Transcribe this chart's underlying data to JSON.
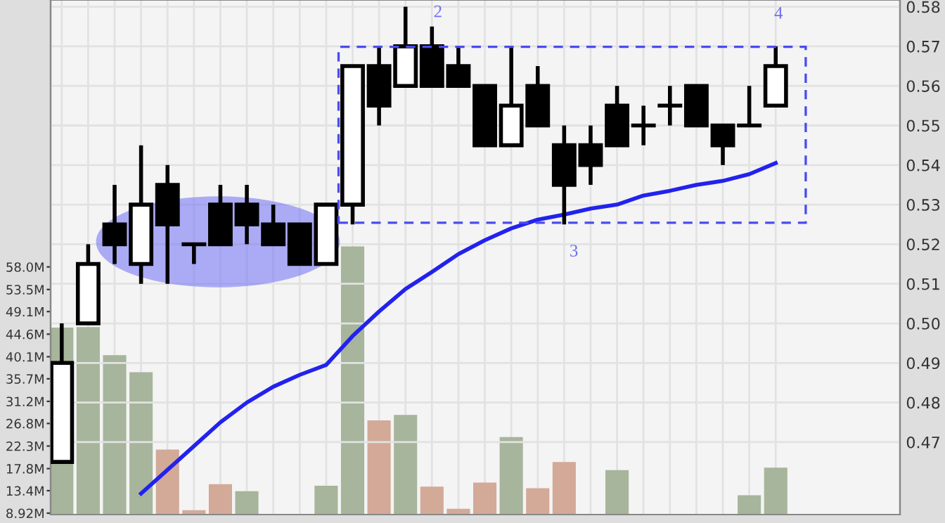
{
  "chart_data": {
    "type": "candlestick",
    "categories": [
      null,
      null,
      null,
      null,
      null,
      null,
      null,
      null,
      null,
      null,
      null,
      null,
      null,
      null,
      null,
      null,
      null,
      null,
      null,
      null,
      null,
      null,
      null,
      null,
      null,
      null,
      null,
      null
    ],
    "ohlc": [
      [
        0.465,
        0.5,
        0.465,
        0.49
      ],
      [
        0.5,
        0.52,
        0.5,
        0.515
      ],
      [
        0.525,
        0.535,
        0.515,
        0.52
      ],
      [
        0.515,
        0.545,
        0.51,
        0.53
      ],
      [
        0.535,
        0.54,
        0.51,
        0.525
      ],
      [
        0.52,
        0.52,
        0.515,
        0.52
      ],
      [
        0.53,
        0.535,
        0.52,
        0.52
      ],
      [
        0.53,
        0.535,
        0.52,
        0.525
      ],
      [
        0.525,
        0.53,
        0.52,
        0.52
      ],
      [
        0.525,
        0.525,
        0.515,
        0.515
      ],
      [
        0.515,
        0.53,
        0.515,
        0.53
      ],
      [
        0.53,
        0.565,
        0.525,
        0.565
      ],
      [
        0.565,
        0.57,
        0.55,
        0.555
      ],
      [
        0.56,
        0.58,
        0.56,
        0.57
      ],
      [
        0.57,
        0.575,
        0.56,
        0.56
      ],
      [
        0.565,
        0.57,
        0.56,
        0.56
      ],
      [
        0.56,
        0.56,
        0.545,
        0.545
      ],
      [
        0.545,
        0.57,
        0.545,
        0.555
      ],
      [
        0.56,
        0.565,
        0.55,
        0.55
      ],
      [
        0.545,
        0.55,
        0.525,
        0.535
      ],
      [
        0.545,
        0.55,
        0.535,
        0.54
      ],
      [
        0.555,
        0.56,
        0.545,
        0.545
      ],
      [
        0.55,
        0.555,
        0.545,
        0.55
      ],
      [
        0.555,
        0.56,
        0.55,
        0.555
      ],
      [
        0.56,
        0.56,
        0.55,
        0.55
      ],
      [
        0.55,
        0.55,
        0.54,
        0.545
      ],
      [
        0.55,
        0.56,
        0.55,
        0.55
      ],
      [
        0.555,
        0.57,
        0.555,
        0.565
      ]
    ],
    "series": [
      {
        "type": "bar",
        "axis": "y2",
        "values": [
          45.9,
          46.0,
          40.4,
          37.0,
          21.6,
          9.5,
          14.7,
          13.3,
          null,
          null,
          14.4,
          62.1,
          27.4,
          28.5,
          14.2,
          9.8,
          15.0,
          24.1,
          13.9,
          19.1,
          null,
          17.5,
          null,
          null,
          null,
          null,
          12.5,
          18.0
        ],
        "colors": [
          "#a6b59b",
          "#a6b59b",
          "#a6b59b",
          "#a6b59b",
          "#d3a998",
          "#d3a998",
          "#d3a998",
          "#a6b59b",
          "#a6b59b",
          "#a6b59b",
          "#a6b59b",
          "#a6b59b",
          "#d3a998",
          "#a6b59b",
          "#d3a998",
          "#d3a998",
          "#d3a998",
          "#a6b59b",
          "#d3a998",
          "#d3a998",
          "#a6b59b",
          "#a6b59b",
          "#a6b59b",
          "#a6b59b",
          "#a6b59b",
          "#a6b59b",
          "#a6b59b",
          "#a6b59b"
        ]
      },
      {
        "type": "line",
        "color": "#2222ee",
        "values": [
          null,
          null,
          null,
          0.457,
          0.463,
          0.469,
          0.475,
          0.48,
          0.484,
          0.487,
          0.4895,
          0.4968,
          0.503,
          0.5087,
          0.513,
          0.5175,
          0.521,
          0.524,
          0.5262,
          0.5275,
          0.529,
          0.53,
          0.5323,
          0.5335,
          0.535,
          0.536,
          0.5377,
          0.5405
        ]
      }
    ],
    "ylim": [
      0.4517,
      0.5817
    ],
    "yticks": [
      0.47,
      0.48,
      0.49,
      {
        "value": 0.5,
        "label": "0.50"
      },
      0.51,
      0.52,
      0.53,
      0.54,
      0.55,
      0.56,
      0.57,
      0.58
    ],
    "y2lim": [
      8.64,
      111.2
    ],
    "y2ticks": [
      {
        "value": 8.92,
        "label": "8.92M"
      },
      {
        "value": 13.4,
        "label": "13.4M"
      },
      {
        "value": 17.8,
        "label": "17.8M"
      },
      {
        "value": 22.3,
        "label": "22.3M"
      },
      {
        "value": 26.8,
        "label": "26.8M"
      },
      {
        "value": 31.2,
        "label": "31.2M"
      },
      {
        "value": 35.7,
        "label": "35.7M"
      },
      {
        "value": 40.1,
        "label": "40.1M"
      },
      {
        "value": 44.6,
        "label": "44.6M"
      },
      {
        "value": 49.1,
        "label": "49.1M"
      },
      {
        "value": 53.5,
        "label": "53.5M"
      },
      {
        "value": 58.0,
        "label": "58.0M"
      }
    ],
    "annotations": [
      "2",
      "3",
      "4"
    ],
    "grid": true,
    "legend": false,
    "marker": "none"
  }
}
